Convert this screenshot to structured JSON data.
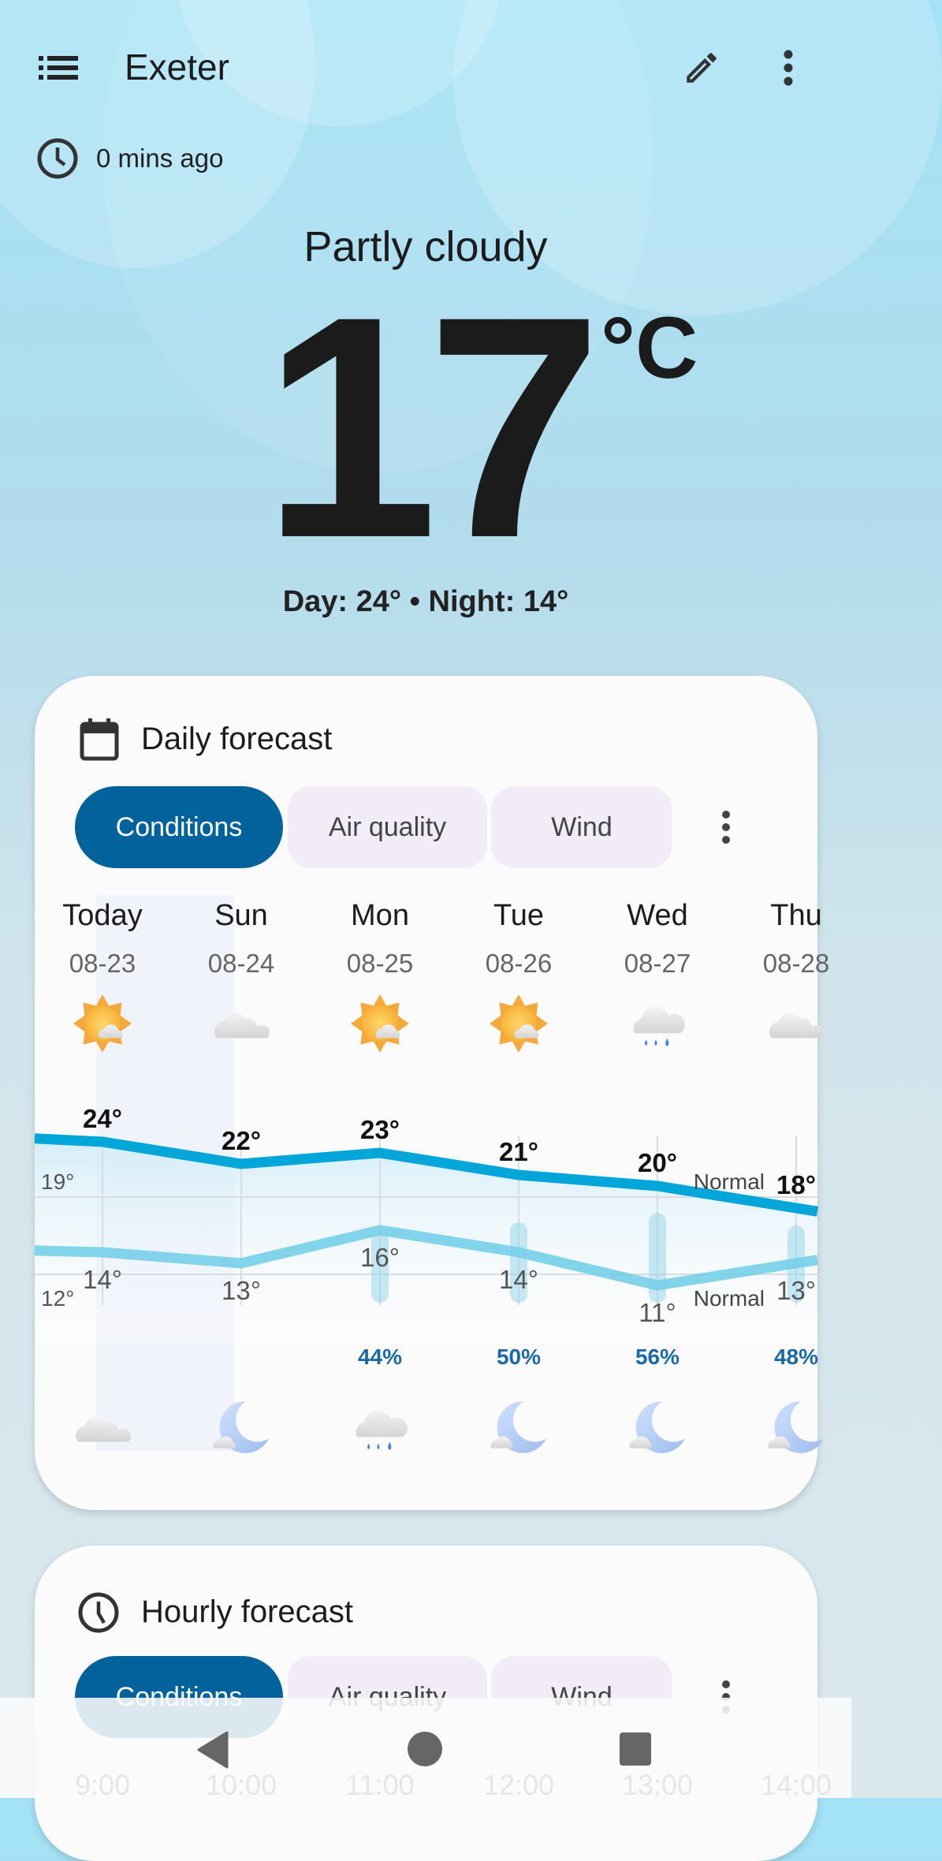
{
  "header": {
    "title": "Exeter",
    "menu_icon": "list-icon",
    "edit_icon": "pencil-icon",
    "more_icon": "more-vert-icon"
  },
  "updated": {
    "icon": "clock-icon",
    "text": "0 mins ago"
  },
  "current": {
    "condition": "Partly cloudy",
    "temperature": "17",
    "unit": "°C",
    "day_night": "Day: 24° • Night: 14°"
  },
  "daily": {
    "title": "Daily forecast",
    "icon": "calendar-icon",
    "tabs": [
      {
        "label": "Conditions",
        "active": true
      },
      {
        "label": "Air quality",
        "active": false
      },
      {
        "label": "Wind",
        "active": false
      }
    ],
    "days": [
      {
        "name": "Today",
        "date": "08-23",
        "day_icon": "partly-cloudy-day",
        "night_icon": "cloudy",
        "high": 24,
        "low": 14,
        "high_label": "24°",
        "low_label": "14°",
        "precip": "",
        "precip_value": 0
      },
      {
        "name": "Sun",
        "date": "08-24",
        "day_icon": "cloudy",
        "night_icon": "partly-cloudy-night",
        "high": 22,
        "low": 13,
        "high_label": "22°",
        "low_label": "13°",
        "precip": "",
        "precip_value": 0
      },
      {
        "name": "Mon",
        "date": "08-25",
        "day_icon": "partly-cloudy-day",
        "night_icon": "rain",
        "high": 23,
        "low": 16,
        "high_label": "23°",
        "low_label": "16°",
        "precip": "44%",
        "precip_value": 44
      },
      {
        "name": "Tue",
        "date": "08-26",
        "day_icon": "partly-cloudy-day",
        "night_icon": "partly-cloudy-night",
        "high": 21,
        "low": 14,
        "high_label": "21°",
        "low_label": "14°",
        "precip": "50%",
        "precip_value": 50
      },
      {
        "name": "Wed",
        "date": "08-27",
        "day_icon": "rain",
        "night_icon": "partly-cloudy-night",
        "high": 20,
        "low": 11,
        "high_label": "20°",
        "low_label": "11°",
        "precip": "56%",
        "precip_value": 56
      },
      {
        "name": "Thu",
        "date": "08-28",
        "day_icon": "cloudy",
        "night_icon": "partly-cloudy-night",
        "high": 18,
        "low": 13,
        "high_label": "18°",
        "low_label": "13°",
        "precip": "48%",
        "precip_value": 48
      }
    ],
    "normal": {
      "high": 19,
      "low": 12,
      "high_label": "19°",
      "low_label": "12°",
      "label": "Normal"
    },
    "colors": {
      "high_line": "#02a6d9",
      "low_line": "#76cfe9",
      "accent": "#02639c"
    }
  },
  "hourly": {
    "title": "Hourly forecast",
    "icon": "clock-icon",
    "tabs": [
      {
        "label": "Conditions",
        "active": true
      },
      {
        "label": "Air quality",
        "active": false
      },
      {
        "label": "Wind",
        "active": false
      }
    ],
    "hours": [
      "9:00",
      "10:00",
      "11:00",
      "12:00",
      "13:00",
      "14:00"
    ]
  },
  "navbar": {
    "back": "back-triangle-icon",
    "home": "home-circle-icon",
    "recents": "recents-square-icon"
  }
}
